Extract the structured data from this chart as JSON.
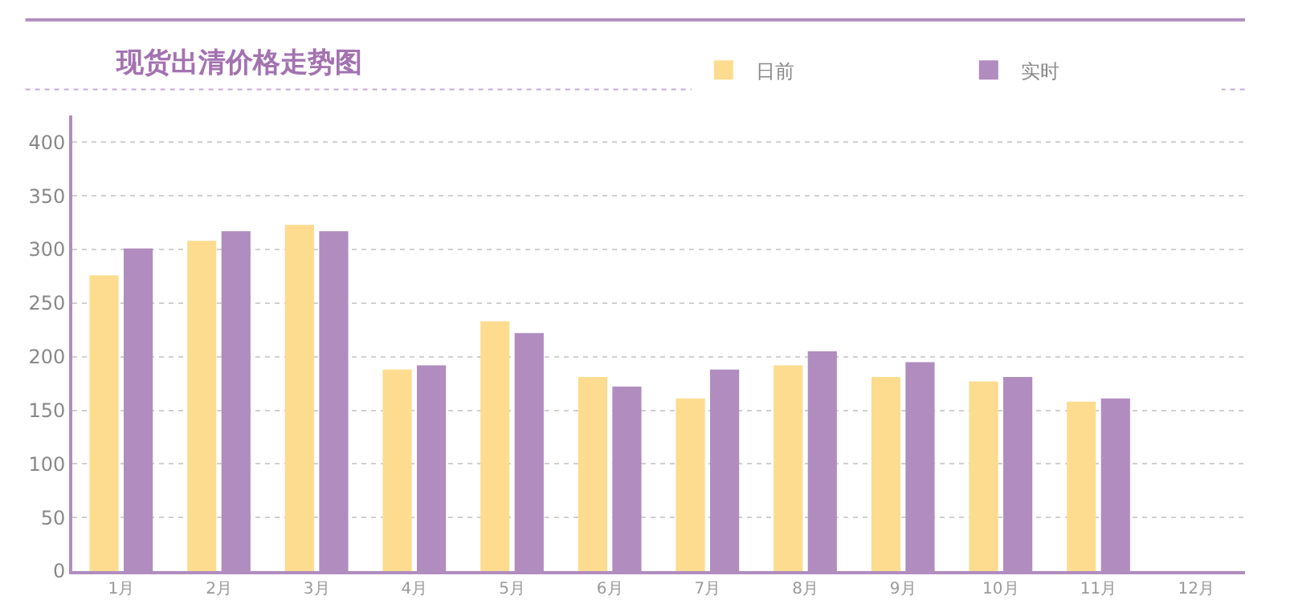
{
  "chart_data": {
    "type": "bar",
    "title": "现货出清价格走势图",
    "categories": [
      "1月",
      "2月",
      "3月",
      "4月",
      "5月",
      "6月",
      "7月",
      "8月",
      "9月",
      "10月",
      "11月",
      "12月"
    ],
    "series": [
      {
        "name": "日前",
        "color": "#fddc8f",
        "values": [
          276,
          308,
          323,
          188,
          233,
          181,
          161,
          192,
          181,
          177,
          158,
          null
        ]
      },
      {
        "name": "实时",
        "color": "#b08cbf",
        "values": [
          301,
          317,
          317,
          192,
          222,
          172,
          188,
          205,
          195,
          181,
          161,
          null
        ]
      }
    ],
    "ylim": [
      0,
      425
    ],
    "yticks": [
      0,
      50,
      100,
      150,
      200,
      250,
      300,
      350,
      400
    ],
    "grid": "y",
    "legend": "top right"
  }
}
